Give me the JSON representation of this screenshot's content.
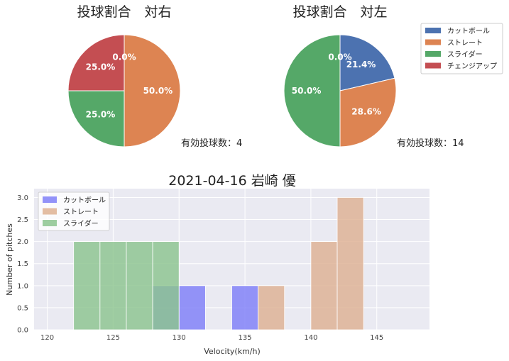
{
  "chart_data": [
    {
      "type": "pie",
      "title": "投球割合　対右",
      "categories": [
        "カットボール",
        "ストレート",
        "スライダー",
        "チェンジアップ"
      ],
      "values": [
        0.0,
        50.0,
        25.0,
        25.0
      ],
      "labels": [
        "0.0%",
        "50.0%",
        "25.0%",
        "25.0%"
      ],
      "annotation": "有効投球数：4"
    },
    {
      "type": "pie",
      "title": "投球割合　対左",
      "categories": [
        "カットボール",
        "ストレート",
        "スライダー",
        "チェンジアップ"
      ],
      "values": [
        21.4,
        28.6,
        50.0,
        0.0
      ],
      "labels": [
        "21.4%",
        "28.6%",
        "50.0%",
        "0.0%"
      ],
      "annotation": "有効投球数：14",
      "legend_placement": "upper-right-outside"
    },
    {
      "type": "bar",
      "subtype": "histogram",
      "title": "2021-04-16 岩崎 優",
      "xlabel": "Velocity(km/h)",
      "ylabel": "Number of pitches",
      "xlim": [
        119,
        149
      ],
      "ylim": [
        0,
        3.2
      ],
      "xticks": [
        120,
        125,
        130,
        135,
        140,
        145
      ],
      "yticks": [
        0.0,
        0.5,
        1.0,
        1.5,
        2.0,
        2.5,
        3.0
      ],
      "legend_placement": "upper-left",
      "grid": true,
      "series": [
        {
          "name": "カットボール",
          "bins": [
            [
              128,
              130,
              1
            ],
            [
              130,
              132,
              1
            ],
            [
              134,
              136,
              1
            ]
          ]
        },
        {
          "name": "ストレート",
          "bins": [
            [
              136,
              138,
              1
            ],
            [
              140,
              142,
              2
            ],
            [
              142,
              144,
              3
            ]
          ]
        },
        {
          "name": "スライダー",
          "bins": [
            [
              122,
              124,
              2
            ],
            [
              124,
              126,
              2
            ],
            [
              126,
              128,
              2
            ],
            [
              128,
              130,
              2
            ]
          ]
        }
      ]
    }
  ],
  "colors": {
    "カットボール": "#4c72b0",
    "ストレート": "#dd8452",
    "スライダー": "#55a868",
    "チェンジアップ": "#c44e52",
    "hist_カットボール": "#7f7ff8",
    "hist_ストレート": "#deb193",
    "hist_スライダー": "#8cc48f",
    "axes_bg": "#eaeaf2"
  }
}
